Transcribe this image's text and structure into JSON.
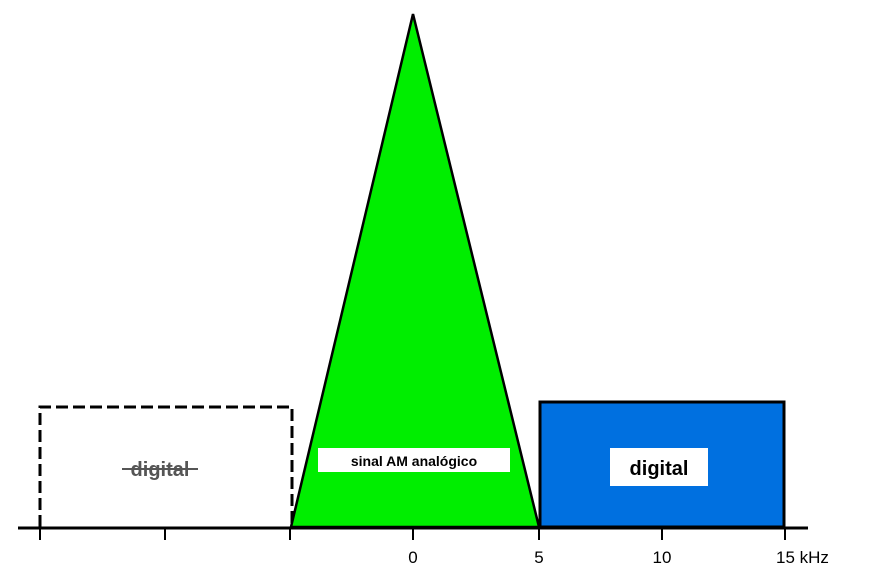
{
  "diagram": {
    "axis": {
      "tick_labels": [
        "0",
        "5",
        "10",
        "15 kHz"
      ]
    },
    "bands": {
      "left_digital": {
        "label": "digital",
        "style": "dashed outline, white fill, label struck through"
      },
      "analog_am": {
        "label": "sinal AM analógico",
        "color": "#00ee00"
      },
      "right_digital": {
        "label": "digital",
        "color": "#0070e0"
      }
    },
    "colors": {
      "analog_fill": "#00ee00",
      "digital_fill": "#0070e0",
      "outline": "#000000",
      "label_box": "#ffffff"
    }
  }
}
